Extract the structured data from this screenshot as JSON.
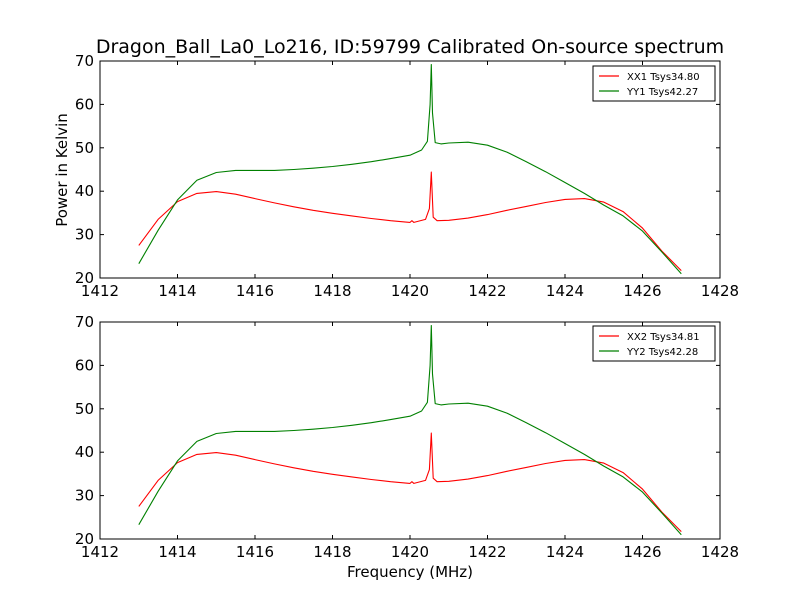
{
  "chart_data": [
    {
      "type": "line",
      "title": "Dragon_Ball_La0_Lo216, ID:59799 Calibrated On-source spectrum",
      "xlabel": "",
      "ylabel": "Power in Kelvin",
      "xlim": [
        1412,
        1428
      ],
      "ylim": [
        20,
        70
      ],
      "xticks": [
        1412,
        1414,
        1416,
        1418,
        1420,
        1422,
        1424,
        1426,
        1428
      ],
      "yticks": [
        20,
        30,
        40,
        50,
        60,
        70
      ],
      "legend_position": "top-right",
      "series": [
        {
          "name": "XX1 Tsys34.80",
          "color": "#ff0000",
          "x": [
            1413.0,
            1413.5,
            1414.0,
            1414.5,
            1415.0,
            1415.5,
            1416.0,
            1416.5,
            1417.0,
            1417.5,
            1418.0,
            1418.5,
            1419.0,
            1419.5,
            1420.0,
            1420.05,
            1420.1,
            1420.4,
            1420.5,
            1420.55,
            1420.6,
            1420.7,
            1421.0,
            1421.5,
            1422.0,
            1422.5,
            1423.0,
            1423.5,
            1424.0,
            1424.5,
            1425.0,
            1425.5,
            1426.0,
            1426.5,
            1427.0
          ],
          "y": [
            27.5,
            33.5,
            37.6,
            39.5,
            39.9,
            39.3,
            38.3,
            37.3,
            36.4,
            35.6,
            34.9,
            34.3,
            33.7,
            33.2,
            32.8,
            33.2,
            32.8,
            33.5,
            36.0,
            44.4,
            34.0,
            33.2,
            33.3,
            33.8,
            34.6,
            35.6,
            36.5,
            37.4,
            38.1,
            38.3,
            37.5,
            35.3,
            31.5,
            26.2,
            21.7
          ]
        },
        {
          "name": "YY1 Tsys42.27",
          "color": "#008000",
          "x": [
            1413.0,
            1413.5,
            1414.0,
            1414.5,
            1415.0,
            1415.5,
            1416.0,
            1416.5,
            1417.0,
            1417.5,
            1418.0,
            1418.5,
            1419.0,
            1419.5,
            1420.0,
            1420.3,
            1420.45,
            1420.52,
            1420.55,
            1420.58,
            1420.65,
            1420.8,
            1421.0,
            1421.5,
            1422.0,
            1422.5,
            1423.0,
            1423.5,
            1424.0,
            1424.5,
            1425.0,
            1425.5,
            1426.0,
            1426.5,
            1427.0
          ],
          "y": [
            23.3,
            31.0,
            38.0,
            42.5,
            44.3,
            44.8,
            44.8,
            44.8,
            45.0,
            45.3,
            45.7,
            46.2,
            46.8,
            47.5,
            48.3,
            49.5,
            51.5,
            60.0,
            69.2,
            58.0,
            51.2,
            50.9,
            51.1,
            51.3,
            50.6,
            49.0,
            46.8,
            44.5,
            42.0,
            39.5,
            36.8,
            34.3,
            30.8,
            26.0,
            21.0
          ]
        }
      ]
    },
    {
      "type": "line",
      "title": "",
      "xlabel": "Frequency (MHz)",
      "ylabel": "",
      "xlim": [
        1412,
        1428
      ],
      "ylim": [
        20,
        70
      ],
      "xticks": [
        1412,
        1414,
        1416,
        1418,
        1420,
        1422,
        1424,
        1426,
        1428
      ],
      "yticks": [
        20,
        30,
        40,
        50,
        60,
        70
      ],
      "legend_position": "top-right",
      "series": [
        {
          "name": "XX2 Tsys34.81",
          "color": "#ff0000",
          "x": [
            1413.0,
            1413.5,
            1414.0,
            1414.5,
            1415.0,
            1415.5,
            1416.0,
            1416.5,
            1417.0,
            1417.5,
            1418.0,
            1418.5,
            1419.0,
            1419.5,
            1420.0,
            1420.05,
            1420.1,
            1420.4,
            1420.5,
            1420.55,
            1420.6,
            1420.7,
            1421.0,
            1421.5,
            1422.0,
            1422.5,
            1423.0,
            1423.5,
            1424.0,
            1424.5,
            1425.0,
            1425.5,
            1426.0,
            1426.5,
            1427.0
          ],
          "y": [
            27.5,
            33.5,
            37.6,
            39.5,
            39.9,
            39.3,
            38.3,
            37.3,
            36.4,
            35.6,
            34.9,
            34.3,
            33.7,
            33.2,
            32.8,
            33.2,
            32.8,
            33.5,
            36.0,
            44.4,
            34.0,
            33.2,
            33.3,
            33.8,
            34.6,
            35.6,
            36.5,
            37.4,
            38.1,
            38.3,
            37.5,
            35.3,
            31.5,
            26.2,
            21.7
          ]
        },
        {
          "name": "YY2 Tsys42.28",
          "color": "#008000",
          "x": [
            1413.0,
            1413.5,
            1414.0,
            1414.5,
            1415.0,
            1415.5,
            1416.0,
            1416.5,
            1417.0,
            1417.5,
            1418.0,
            1418.5,
            1419.0,
            1419.5,
            1420.0,
            1420.3,
            1420.45,
            1420.52,
            1420.55,
            1420.58,
            1420.65,
            1420.8,
            1421.0,
            1421.5,
            1422.0,
            1422.5,
            1423.0,
            1423.5,
            1424.0,
            1424.5,
            1425.0,
            1425.5,
            1426.0,
            1426.5,
            1427.0
          ],
          "y": [
            23.3,
            31.0,
            38.0,
            42.5,
            44.3,
            44.8,
            44.8,
            44.8,
            45.0,
            45.3,
            45.7,
            46.2,
            46.8,
            47.5,
            48.3,
            49.5,
            51.5,
            60.0,
            69.2,
            58.0,
            51.2,
            50.9,
            51.1,
            51.3,
            50.6,
            49.0,
            46.8,
            44.5,
            42.0,
            39.5,
            36.8,
            34.3,
            30.8,
            26.0,
            21.0
          ]
        }
      ]
    }
  ]
}
